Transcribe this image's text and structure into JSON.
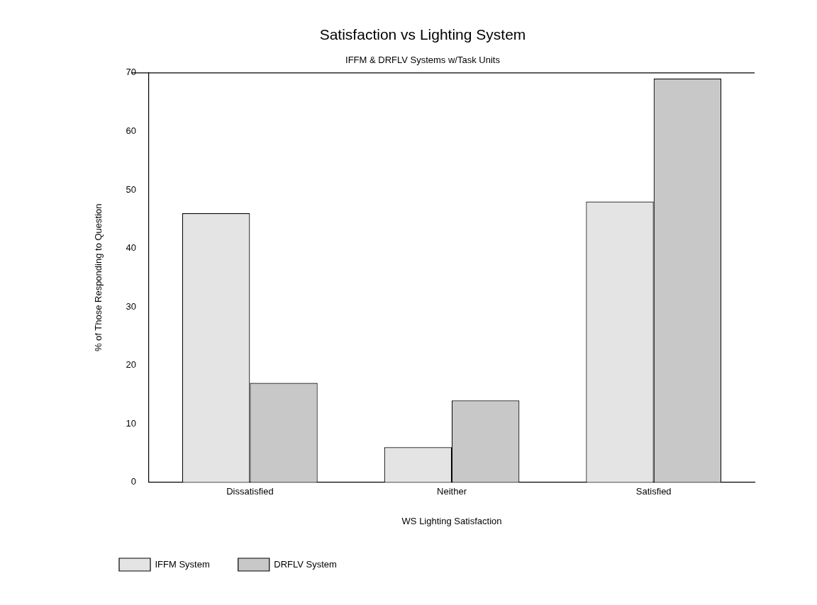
{
  "chart_data": {
    "type": "bar",
    "title": "Satisfaction vs Lighting System",
    "subtitle": "IFFM & DRFLV Systems w/Task Units",
    "xlabel": "WS Lighting Satisfaction",
    "ylabel": "% of Those Responding to Question",
    "categories": [
      "Dissatisfied",
      "Neither",
      "Satisfied"
    ],
    "series": [
      {
        "name": "IFFM System",
        "color": "#e4e4e4",
        "values": [
          46,
          6,
          48
        ]
      },
      {
        "name": "DRFLV System",
        "color": "#c8c8c8",
        "values": [
          17,
          14,
          69
        ]
      }
    ],
    "ylim": [
      0,
      70
    ],
    "yticks": [
      0,
      10,
      20,
      30,
      40,
      50,
      60,
      70
    ],
    "grid": false,
    "legend": "bottom left"
  }
}
